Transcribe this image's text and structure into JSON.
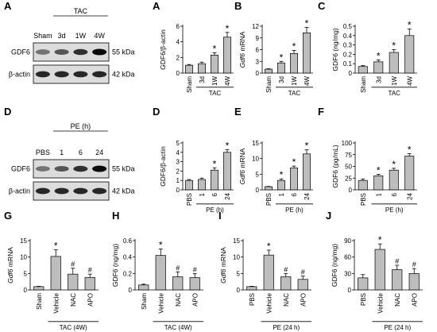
{
  "blots": [
    {
      "panel": "A",
      "header_label": "TAC",
      "header_groups": [
        "3d",
        "1W",
        "4W"
      ],
      "lanes": [
        "Sham",
        "3d",
        "1W",
        "4W"
      ],
      "rows": [
        {
          "label": "GDF6",
          "size": "55 kDa",
          "intensity": [
            0.45,
            0.6,
            0.8,
            1.0
          ]
        },
        {
          "label": "β-actin",
          "size": "42 kDa",
          "intensity": [
            0.85,
            0.85,
            0.85,
            0.85
          ]
        }
      ]
    },
    {
      "panel": "D",
      "header_label": "PE (h)",
      "header_groups": [
        "1",
        "6",
        "24"
      ],
      "lanes": [
        "PBS",
        "1",
        "6",
        "24"
      ],
      "rows": [
        {
          "label": "GDF6",
          "size": "55 kDa",
          "intensity": [
            0.45,
            0.6,
            0.8,
            1.0
          ]
        },
        {
          "label": "β-actin",
          "size": "42 kDa",
          "intensity": [
            0.85,
            0.85,
            0.85,
            0.85
          ]
        }
      ]
    }
  ],
  "chart_data": [
    {
      "panel": "A",
      "type": "bar",
      "ylabel": "GDF6/β-actin",
      "ylabel_italic_prefix": "",
      "ylim": [
        0,
        6
      ],
      "yticks": [
        0,
        2,
        4,
        6
      ],
      "categories": [
        "Sham",
        "3d",
        "1W",
        "4W"
      ],
      "values": [
        1.0,
        1.2,
        2.3,
        4.6
      ],
      "errors": [
        0.1,
        0.2,
        0.3,
        0.6
      ],
      "marks": [
        "",
        "",
        "*",
        "*"
      ],
      "group_label": "TAC",
      "group_start": 1
    },
    {
      "panel": "B",
      "type": "bar",
      "ylabel": " mRNA",
      "ylabel_italic_prefix": "Gdf6",
      "ylim": [
        0,
        12
      ],
      "yticks": [
        0,
        3,
        6,
        9,
        12
      ],
      "categories": [
        "Sham",
        "3d",
        "1W",
        "4W"
      ],
      "values": [
        1.0,
        2.6,
        5.0,
        10.3
      ],
      "errors": [
        0.1,
        0.4,
        0.8,
        1.4
      ],
      "marks": [
        "",
        "*",
        "*",
        "*"
      ],
      "group_label": "TAC",
      "group_start": 1
    },
    {
      "panel": "C",
      "type": "bar",
      "ylabel": "GDF6 (ng/mg)",
      "ylabel_italic_prefix": "",
      "ylim": [
        0,
        0.5
      ],
      "yticks": [
        0,
        0.1,
        0.2,
        0.3,
        0.4,
        0.5
      ],
      "categories": [
        "Sham",
        "3d",
        "1W",
        "4W"
      ],
      "values": [
        0.07,
        0.12,
        0.22,
        0.4
      ],
      "errors": [
        0.01,
        0.02,
        0.03,
        0.07
      ],
      "marks": [
        "",
        "*",
        "*",
        "*"
      ],
      "group_label": "TAC",
      "group_start": 1
    },
    {
      "panel": "D",
      "type": "bar",
      "ylabel": "GDF6/β-actin",
      "ylabel_italic_prefix": "",
      "ylim": [
        0,
        5
      ],
      "yticks": [
        0,
        1,
        2,
        3,
        4,
        5
      ],
      "categories": [
        "PBS",
        "1",
        "6",
        "24"
      ],
      "values": [
        1.0,
        1.1,
        2.1,
        4.0
      ],
      "errors": [
        0.1,
        0.15,
        0.25,
        0.3
      ],
      "marks": [
        "",
        "",
        "*",
        "*"
      ],
      "group_label": "PE (h)",
      "group_start": 1
    },
    {
      "panel": "E",
      "type": "bar",
      "ylabel": " mRNA",
      "ylabel_italic_prefix": "Gdf6",
      "ylim": [
        0,
        15
      ],
      "yticks": [
        0,
        5,
        10,
        15
      ],
      "categories": [
        "PBS",
        "1",
        "6",
        "24"
      ],
      "values": [
        1.0,
        3.0,
        7.0,
        11.5
      ],
      "errors": [
        0.1,
        0.5,
        0.6,
        1.3
      ],
      "marks": [
        "",
        "*",
        "*",
        "*"
      ],
      "group_label": "PE (h)",
      "group_start": 1
    },
    {
      "panel": "F",
      "type": "bar",
      "ylabel": "GDF6 (pg/mL)",
      "ylabel_italic_prefix": "",
      "ylim": [
        0,
        100
      ],
      "yticks": [
        0,
        25,
        50,
        75,
        100
      ],
      "categories": [
        "PBS",
        "1",
        "6",
        "24"
      ],
      "values": [
        20,
        30,
        42,
        72
      ],
      "errors": [
        3,
        3,
        4,
        5
      ],
      "marks": [
        "",
        "*",
        "*",
        "*"
      ],
      "group_label": "PE (h)",
      "group_start": 1
    },
    {
      "panel": "G",
      "type": "bar",
      "ylabel": " mRNA",
      "ylabel_italic_prefix": "Gdf6",
      "ylim": [
        0,
        15
      ],
      "yticks": [
        0,
        5,
        10,
        15
      ],
      "categories": [
        "Sham",
        "Vehicle",
        "NAC",
        "APO"
      ],
      "values": [
        1.0,
        10.2,
        4.8,
        3.8
      ],
      "errors": [
        0.1,
        2.0,
        1.8,
        1.0
      ],
      "marks": [
        "",
        "*",
        "#",
        "#"
      ],
      "group_label": "TAC (4W)",
      "group_start": 1
    },
    {
      "panel": "H",
      "type": "bar",
      "ylabel": "GDF6 (ng/mg)",
      "ylabel_italic_prefix": "",
      "ylim": [
        0,
        0.6
      ],
      "yticks": [
        0,
        0.2,
        0.4,
        0.6
      ],
      "categories": [
        "Sham",
        "Vehicle",
        "NAC",
        "APO"
      ],
      "values": [
        0.06,
        0.42,
        0.16,
        0.15
      ],
      "errors": [
        0.01,
        0.08,
        0.06,
        0.05
      ],
      "marks": [
        "",
        "*",
        "#",
        "#"
      ],
      "group_label": "TAC (4W)",
      "group_start": 1
    },
    {
      "panel": "I",
      "type": "bar",
      "ylabel": " mRNA",
      "ylabel_italic_prefix": "Gdf6",
      "ylim": [
        0,
        15
      ],
      "yticks": [
        0,
        5,
        10,
        15
      ],
      "categories": [
        "PBS",
        "Vehicle",
        "NAC",
        "APO"
      ],
      "values": [
        1.0,
        10.6,
        4.0,
        3.2
      ],
      "errors": [
        0.1,
        1.5,
        1.0,
        1.0
      ],
      "marks": [
        "",
        "*",
        "#",
        "#"
      ],
      "group_label": "PE (24 h)",
      "group_start": 1
    },
    {
      "panel": "J",
      "type": "bar",
      "ylabel": "GDF6 (ng/mg)",
      "ylabel_italic_prefix": "",
      "ylim": [
        0,
        90
      ],
      "yticks": [
        0,
        30,
        60,
        90
      ],
      "categories": [
        "PBS",
        "Vehicle",
        "NAC",
        "APO"
      ],
      "values": [
        22,
        74,
        37,
        30
      ],
      "errors": [
        6,
        10,
        8,
        9
      ],
      "marks": [
        "",
        "*",
        "#",
        "#"
      ],
      "group_label": "PE (24 h)",
      "group_start": 1
    }
  ]
}
